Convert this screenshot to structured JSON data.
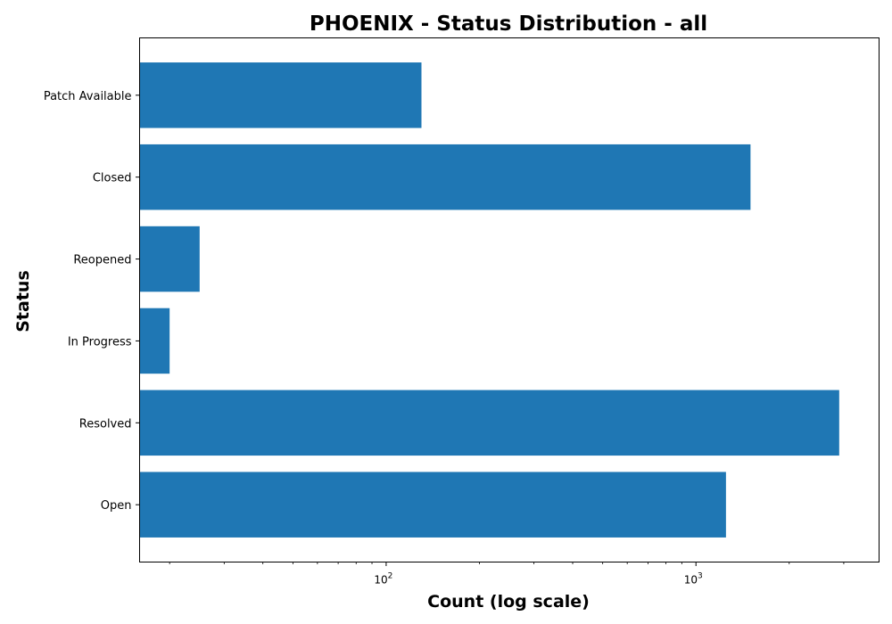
{
  "chart_data": {
    "type": "bar",
    "orientation": "horizontal",
    "title": "PHOENIX - Status Distribution - all",
    "xlabel": "Count (log scale)",
    "ylabel": "Status",
    "x_scale": "log",
    "xlim": [
      16,
      3900
    ],
    "categories": [
      "Open",
      "Resolved",
      "In Progress",
      "Reopened",
      "Closed",
      "Patch Available"
    ],
    "values": [
      1250,
      2900,
      20,
      25,
      1500,
      130
    ],
    "x_ticks": [
      {
        "base": "10",
        "exp": "2",
        "value": 100
      },
      {
        "base": "10",
        "exp": "3",
        "value": 1000
      }
    ],
    "bar_color": "#1f77b4",
    "grid": false,
    "legend": "none"
  }
}
